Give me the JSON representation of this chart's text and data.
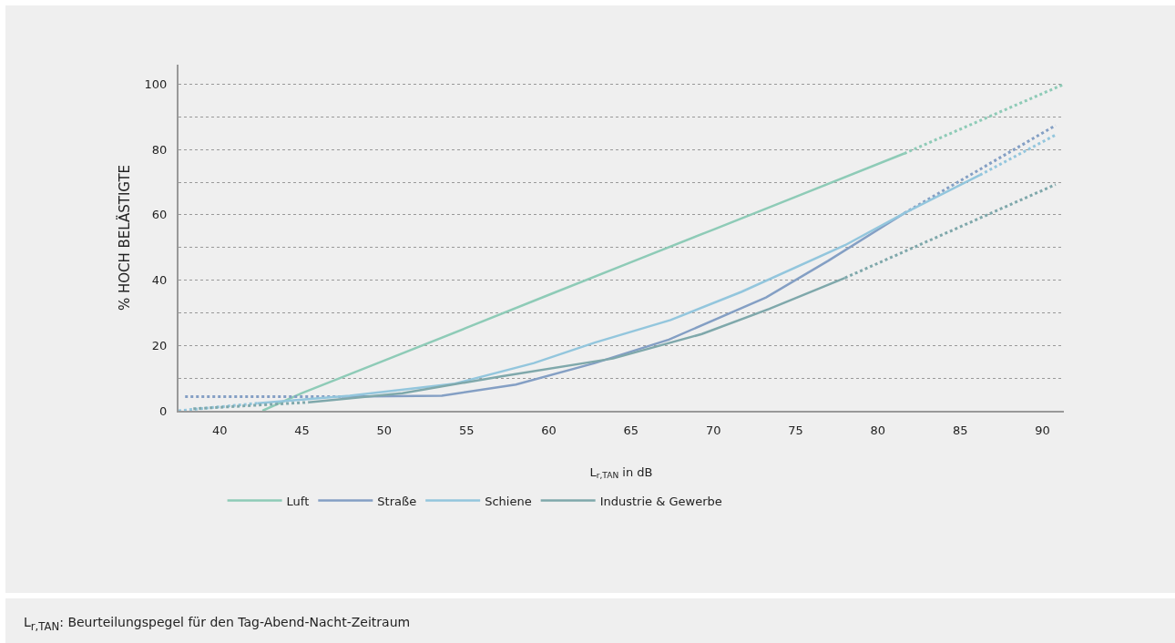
{
  "chart_data": {
    "type": "line",
    "xlabel": "L$_{r,TAN}$ in dB",
    "ylabel": "% HOCH BELÄSTIGTE",
    "xlim": [
      37.5,
      91.3
    ],
    "xticks": [
      40,
      45,
      50,
      55,
      60,
      65,
      70,
      75,
      80,
      85,
      90
    ],
    "ylim": [
      0,
      106
    ],
    "yticks": [
      0,
      {
        "value": 10,
        "label": null
      },
      20,
      {
        "value": 30,
        "label": null
      },
      40,
      {
        "value": 50,
        "label": null
      },
      60,
      {
        "value": 70,
        "label": null
      },
      80,
      {
        "value": 90,
        "label": null
      },
      100
    ],
    "grid": "y",
    "legend": "bottom",
    "marker": "none",
    "series": [
      {
        "name": "Luft",
        "color": "#8ecbb7",
        "line_style": "solid",
        "x": [
          42.6,
          45,
          50,
          55,
          60,
          65,
          70,
          75,
          81.6
        ],
        "values": [
          0,
          5.4,
          15.4,
          25.4,
          35.5,
          45.5,
          55.5,
          65.5,
          78.8
        ]
      },
      {
        "color": "#8ecbb7",
        "line_style": "dotted",
        "x": [
          81.6,
          91.3
        ],
        "values": [
          78.8,
          100
        ]
      },
      {
        "name": "Straße",
        "color": "#849fc4",
        "line_style": "solid",
        "x": [
          47.4,
          53.5,
          58,
          62.8,
          67.3,
          73.2,
          77,
          81.6
        ],
        "values": [
          4.3,
          4.6,
          8,
          14.6,
          21.8,
          34.7,
          46,
          60.5
        ]
      },
      {
        "color": "#849fc4",
        "line_style": "dotted",
        "x": [
          37.9,
          47.4
        ],
        "values": [
          4.3,
          4.3
        ]
      },
      {
        "color": "#849fc4",
        "line_style": "dotted",
        "x": [
          81.6,
          90.8
        ],
        "values": [
          60.5,
          87.4
        ]
      },
      {
        "name": "Schiene",
        "color": "#93c6dd",
        "line_style": "solid",
        "x": [
          42.3,
          47.9,
          54.3,
          59.1,
          62.8,
          67.4,
          71.7,
          78,
          81.6,
          86.2
        ],
        "values": [
          2.3,
          4.6,
          8.3,
          14.6,
          20.9,
          27.8,
          36.4,
          50.7,
          60.5,
          72.2
        ]
      },
      {
        "color": "#93c6dd",
        "line_style": "dotted",
        "x": [
          37.5,
          42.3
        ],
        "values": [
          0,
          2.3
        ]
      },
      {
        "color": "#93c6dd",
        "line_style": "dotted",
        "x": [
          86.2,
          90.8
        ],
        "values": [
          72.2,
          84.5
        ]
      },
      {
        "name": "Industrie & Gewerbe",
        "color": "#7fa8ab",
        "line_style": "solid",
        "x": [
          45.4,
          51.1,
          57.2,
          63.9,
          69.3,
          73.4,
          78
        ],
        "values": [
          2.6,
          5.4,
          10.6,
          16,
          23.5,
          31.2,
          40.7
        ]
      },
      {
        "color": "#7fa8ab",
        "line_style": "dotted",
        "x": [
          38.4,
          45.4
        ],
        "values": [
          0.6,
          2.6
        ]
      },
      {
        "color": "#7fa8ab",
        "line_style": "dotted",
        "x": [
          78,
          90.8
        ],
        "values": [
          40.7,
          69.3
        ]
      }
    ],
    "annotations": [
      "L$_{r,TAN}$: Beurteilungspegel für den Tag-Abend-Nacht-Zeitraum"
    ]
  }
}
